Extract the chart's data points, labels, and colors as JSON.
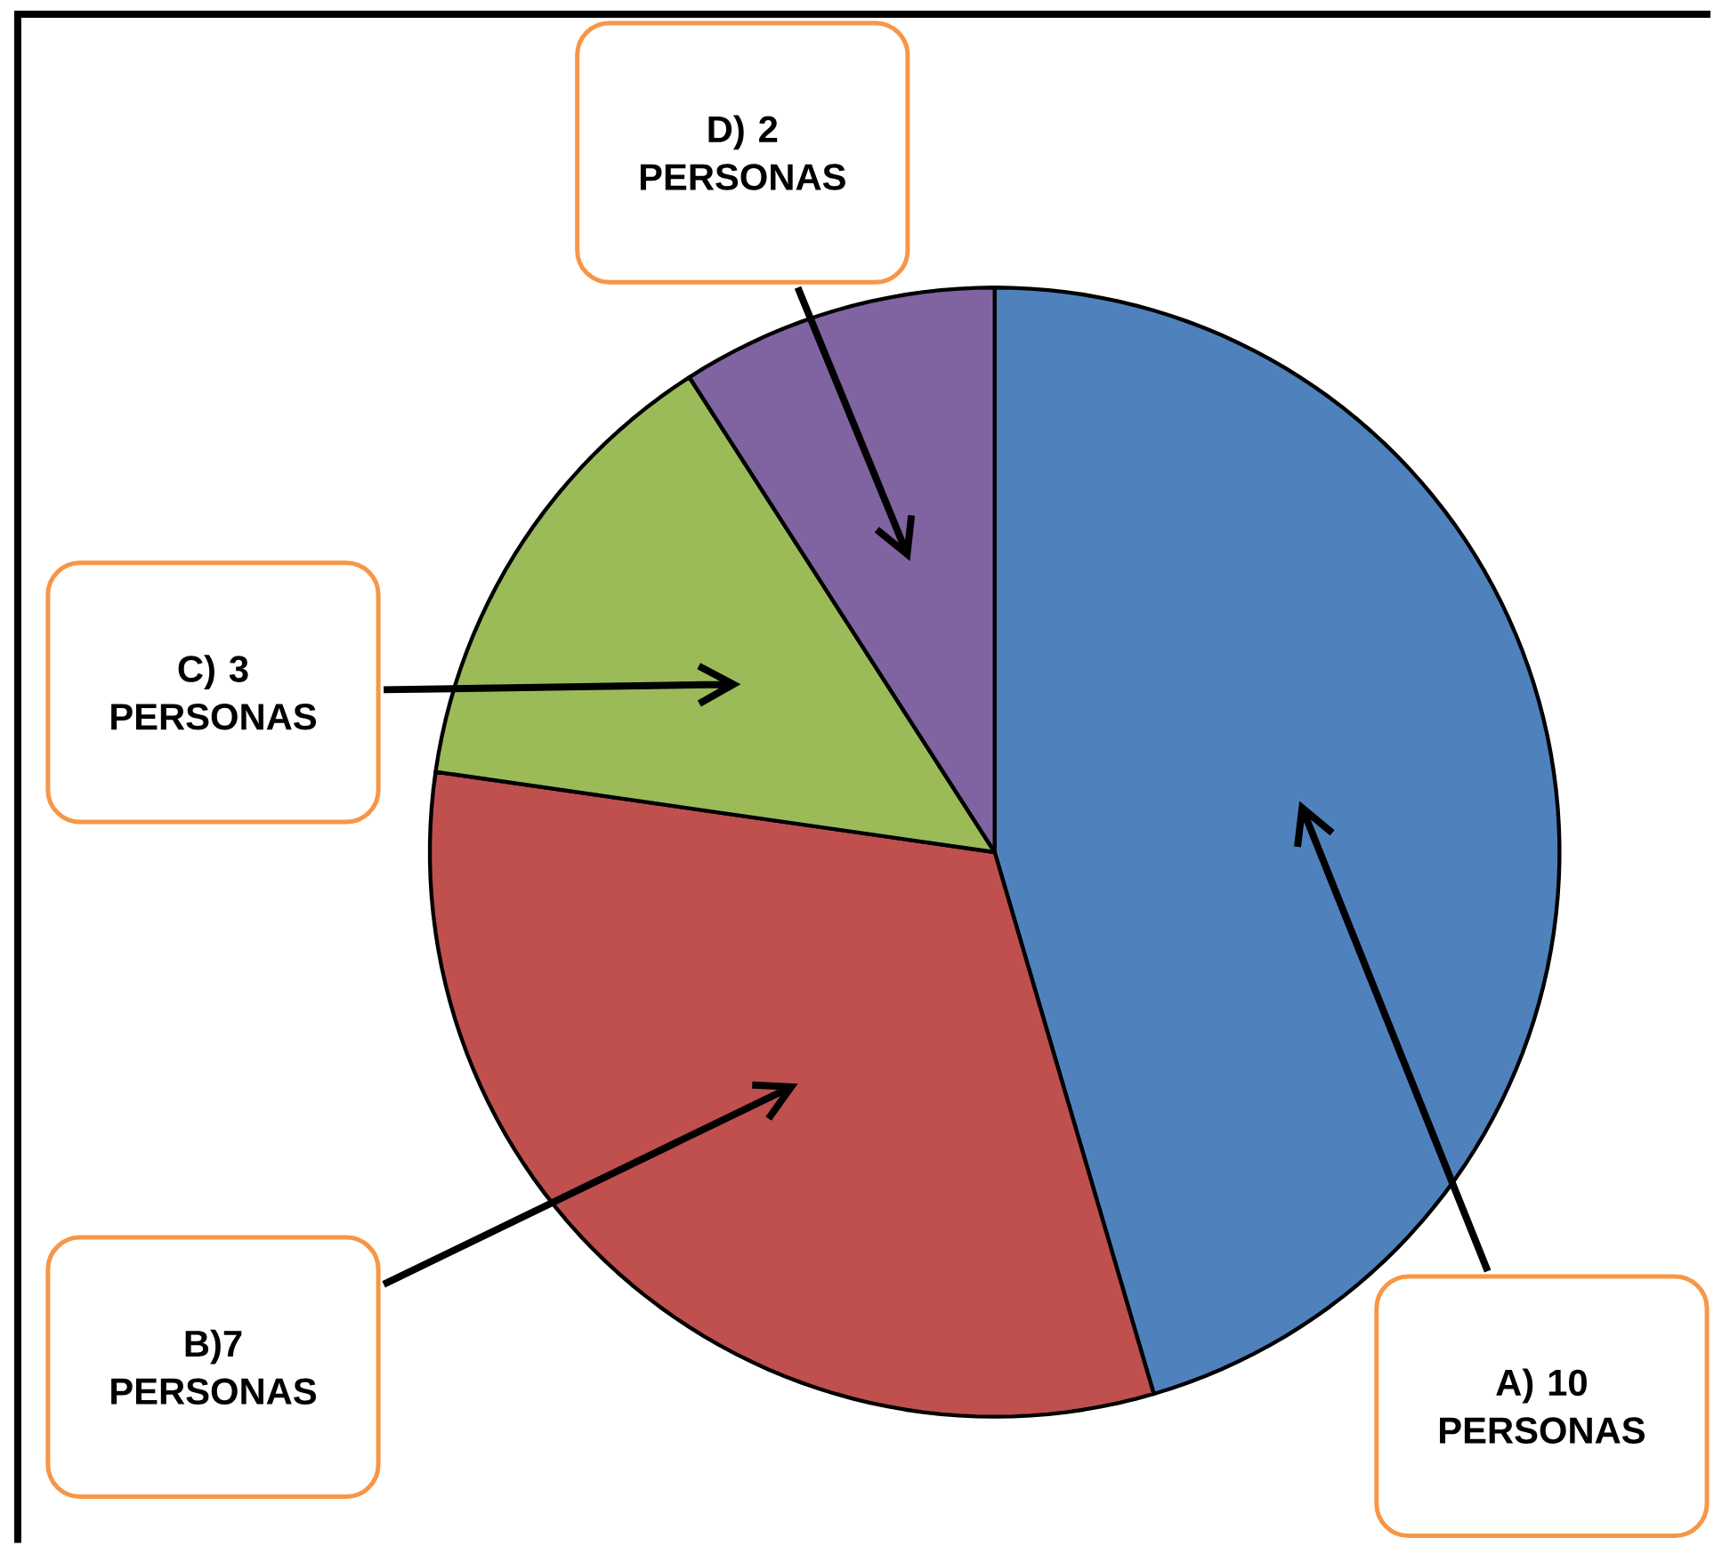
{
  "chart_data": {
    "type": "pie",
    "categories": [
      "A) 10 PERSONAS",
      "B)7 PERSONAS",
      "C) 3 PERSONAS",
      "D) 2 PERSONAS"
    ],
    "values": [
      10,
      7,
      3,
      2
    ],
    "colors": [
      "#4f81bd",
      "#c0504d",
      "#9bbb59",
      "#8064a2"
    ]
  }
}
